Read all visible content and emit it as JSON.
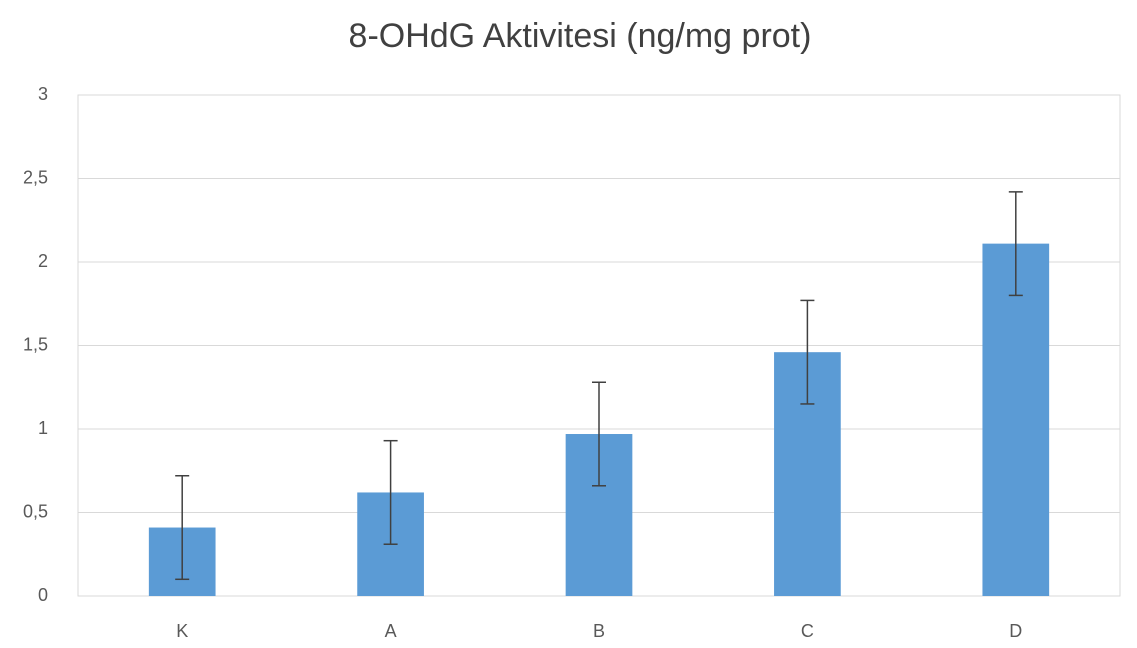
{
  "chart_data": {
    "type": "bar",
    "title": "8-OHdG Aktivitesi (ng/mg prot)",
    "categories": [
      "K",
      "A",
      "B",
      "C",
      "D"
    ],
    "values": [
      0.41,
      0.62,
      0.97,
      1.46,
      2.11
    ],
    "errors": [
      0.31,
      0.31,
      0.31,
      0.31,
      0.31
    ],
    "color": "#5b9bd5",
    "ylim": [
      0,
      3
    ],
    "yticks": [
      0,
      {
        "value": 0.5,
        "label": "0,5"
      },
      1,
      {
        "value": 1.5,
        "label": "1,5"
      },
      2,
      {
        "value": 2.5,
        "label": "2,5"
      },
      3
    ],
    "grid": true
  }
}
